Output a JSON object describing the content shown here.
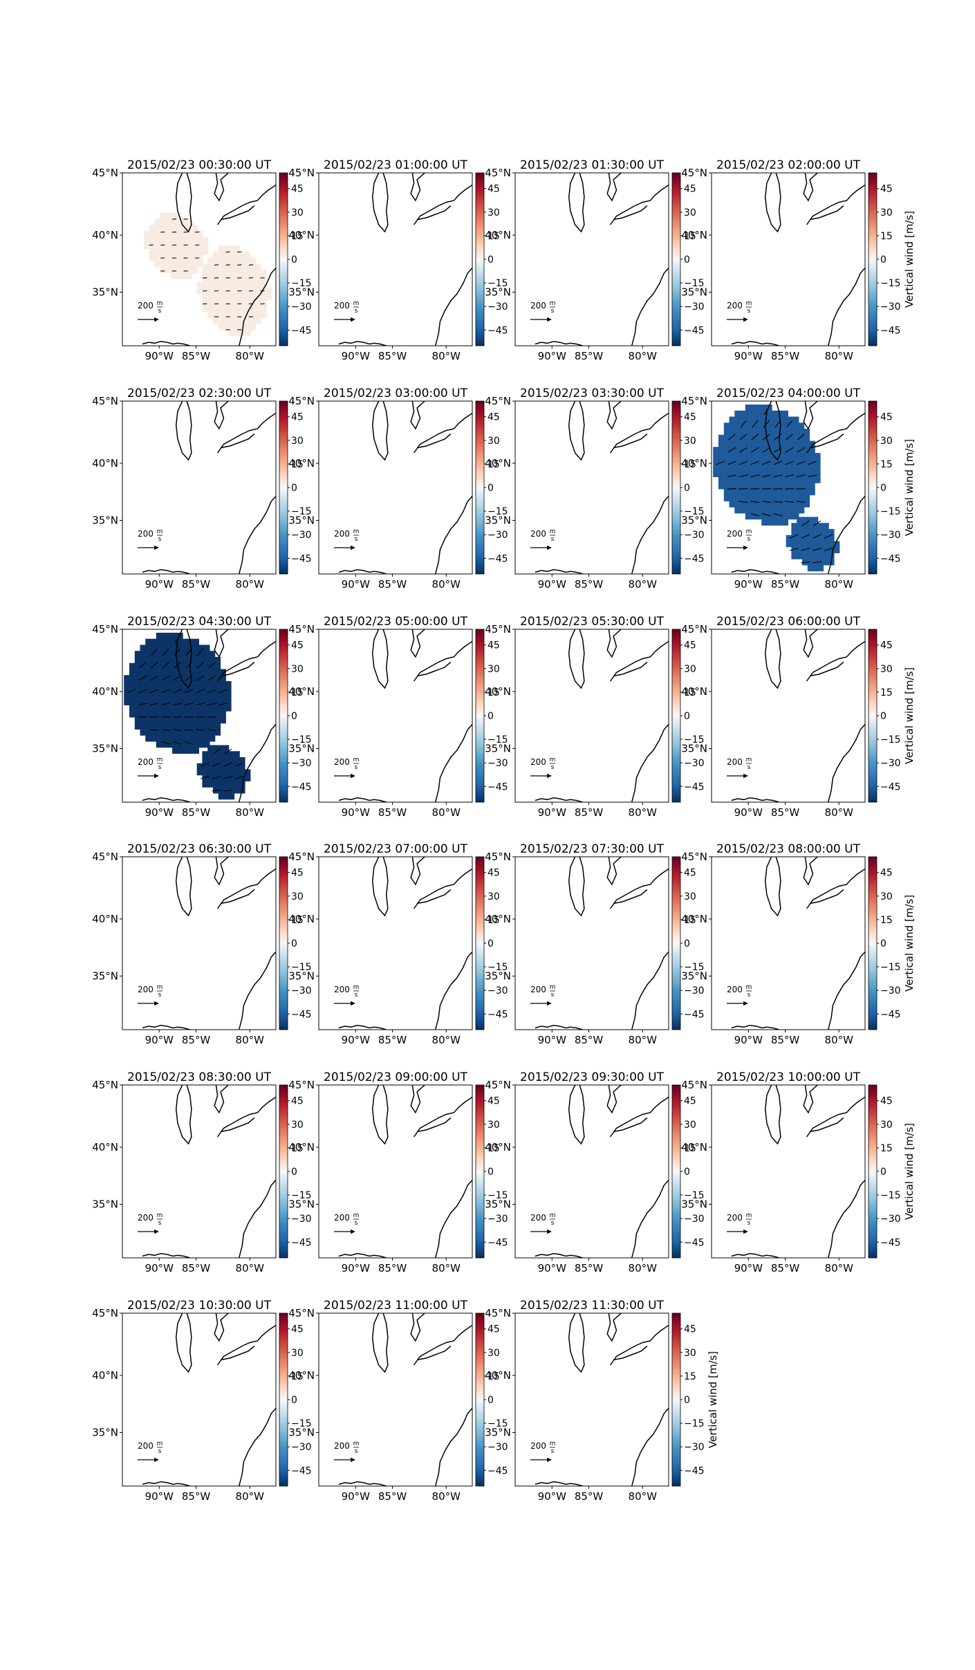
{
  "figure": {
    "rows": 6,
    "cols": 4,
    "lon_ticks": [
      "90°W",
      "85°W",
      "80°W"
    ],
    "lat_ticks": [
      "45°N",
      "40°N",
      "35°N"
    ],
    "colorbar": {
      "ticks": [
        "45",
        "30",
        "15",
        "0",
        "−15",
        "−30",
        "−45"
      ],
      "label": "Vertical wind [m/s]",
      "range": [
        -55,
        55
      ],
      "cmap": "RdBu_r"
    },
    "reference_arrow": {
      "value": "200",
      "unit_num": "m",
      "unit_den": "s"
    }
  },
  "panels": [
    {
      "title": "2015/02/23 00:30:00 UT",
      "label_colorbar": false,
      "blobs": [
        {
          "color": "#f7ebe4",
          "shape": "west",
          "wind": 2
        },
        {
          "color": "#f7ebe4",
          "shape": "south",
          "wind": 2
        }
      ]
    },
    {
      "title": "2015/02/23 01:00:00 UT",
      "label_colorbar": false,
      "blobs": []
    },
    {
      "title": "2015/02/23 01:30:00 UT",
      "label_colorbar": false,
      "blobs": []
    },
    {
      "title": "2015/02/23 02:00:00 UT",
      "label_colorbar": true,
      "blobs": []
    },
    {
      "title": "2015/02/23 02:30:00 UT",
      "label_colorbar": false,
      "blobs": []
    },
    {
      "title": "2015/02/23 03:00:00 UT",
      "label_colorbar": false,
      "blobs": []
    },
    {
      "title": "2015/02/23 03:30:00 UT",
      "label_colorbar": false,
      "blobs": []
    },
    {
      "title": "2015/02/23 04:00:00 UT",
      "label_colorbar": true,
      "blobs": [
        {
          "color": "#1f5a9a",
          "shape": "big",
          "wind": -42
        },
        {
          "color": "#1f5a9a",
          "shape": "small",
          "wind": -42
        }
      ]
    },
    {
      "title": "2015/02/23 04:30:00 UT",
      "label_colorbar": false,
      "blobs": [
        {
          "color": "#0d3466",
          "shape": "big",
          "wind": -52
        },
        {
          "color": "#0d3466",
          "shape": "small",
          "wind": -52
        }
      ]
    },
    {
      "title": "2015/02/23 05:00:00 UT",
      "label_colorbar": false,
      "blobs": []
    },
    {
      "title": "2015/02/23 05:30:00 UT",
      "label_colorbar": false,
      "blobs": []
    },
    {
      "title": "2015/02/23 06:00:00 UT",
      "label_colorbar": true,
      "blobs": []
    },
    {
      "title": "2015/02/23 06:30:00 UT",
      "label_colorbar": false,
      "blobs": []
    },
    {
      "title": "2015/02/23 07:00:00 UT",
      "label_colorbar": false,
      "blobs": []
    },
    {
      "title": "2015/02/23 07:30:00 UT",
      "label_colorbar": false,
      "blobs": []
    },
    {
      "title": "2015/02/23 08:00:00 UT",
      "label_colorbar": true,
      "blobs": []
    },
    {
      "title": "2015/02/23 08:30:00 UT",
      "label_colorbar": false,
      "blobs": []
    },
    {
      "title": "2015/02/23 09:00:00 UT",
      "label_colorbar": false,
      "blobs": []
    },
    {
      "title": "2015/02/23 09:30:00 UT",
      "label_colorbar": false,
      "blobs": []
    },
    {
      "title": "2015/02/23 10:00:00 UT",
      "label_colorbar": true,
      "blobs": []
    },
    {
      "title": "2015/02/23 10:30:00 UT",
      "label_colorbar": false,
      "blobs": []
    },
    {
      "title": "2015/02/23 11:00:00 UT",
      "label_colorbar": false,
      "blobs": []
    },
    {
      "title": "2015/02/23 11:30:00 UT",
      "label_colorbar": true,
      "blobs": []
    }
  ]
}
